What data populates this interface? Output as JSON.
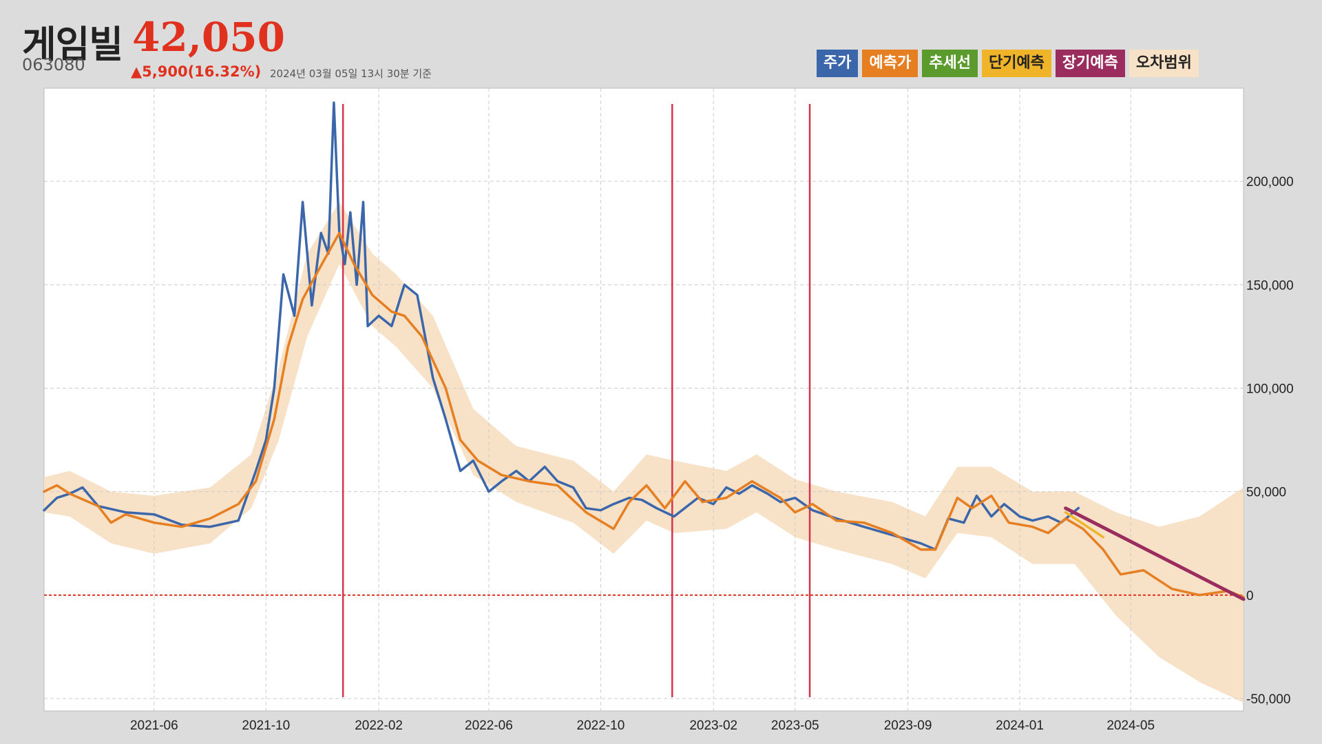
{
  "header": {
    "name": "게임빌",
    "price": "42,050",
    "code": "063080",
    "change": "▲5,900(16.32%)",
    "timestamp": "2024년 03월 05일 13시 30분 기준"
  },
  "legend": [
    {
      "label": "주가",
      "color": "#3b67aa",
      "text_color": "#ffffff"
    },
    {
      "label": "예측가",
      "color": "#e67e22",
      "text_color": "#ffffff"
    },
    {
      "label": "추세선",
      "color": "#5b9a2c",
      "text_color": "#ffffff"
    },
    {
      "label": "단기예측",
      "color": "#f0b429",
      "text_color": "#222222"
    },
    {
      "label": "장기예측",
      "color": "#9b2c5e",
      "text_color": "#ffffff"
    },
    {
      "label": "오차범위",
      "color": "#f7e1c7",
      "text_color": "#222222"
    }
  ],
  "chart_data": {
    "type": "line",
    "x_ticks": [
      "2021-06",
      "2021-10",
      "2022-02",
      "2022-06",
      "2022-10",
      "2023-02",
      "2023-05",
      "2023-09",
      "2024-01",
      "2024-05"
    ],
    "y_ticks": [
      "200,000",
      "150,000",
      "100,000",
      "50,000",
      "0",
      "-50,000"
    ],
    "y_tick_values": [
      200000,
      150000,
      100000,
      50000,
      0,
      -50000
    ],
    "xlim": [
      "2021-02-01",
      "2024-09-01"
    ],
    "ylim": [
      -56000,
      245000
    ],
    "grid": true,
    "zero_line_color": "#e0301e",
    "signal_dates": [
      "2021-12-24",
      "2022-12-18",
      "2023-05-17"
    ],
    "series": [
      {
        "name": "주가",
        "color": "#3b67aa",
        "points": [
          [
            "2021-02-01",
            41000
          ],
          [
            "2021-02-15",
            47000
          ],
          [
            "2021-03-01",
            49000
          ],
          [
            "2021-03-15",
            52000
          ],
          [
            "2021-04-01",
            43000
          ],
          [
            "2021-05-01",
            40000
          ],
          [
            "2021-06-01",
            39000
          ],
          [
            "2021-07-01",
            34000
          ],
          [
            "2021-08-01",
            33000
          ],
          [
            "2021-09-01",
            36000
          ],
          [
            "2021-09-20",
            60000
          ],
          [
            "2021-10-01",
            75000
          ],
          [
            "2021-10-10",
            100000
          ],
          [
            "2021-10-20",
            155000
          ],
          [
            "2021-11-01",
            135000
          ],
          [
            "2021-11-10",
            190000
          ],
          [
            "2021-11-20",
            140000
          ],
          [
            "2021-11-30",
            175000
          ],
          [
            "2021-12-08",
            165000
          ],
          [
            "2021-12-14",
            238000
          ],
          [
            "2021-12-20",
            175000
          ],
          [
            "2021-12-26",
            160000
          ],
          [
            "2022-01-01",
            185000
          ],
          [
            "2022-01-08",
            150000
          ],
          [
            "2022-01-15",
            190000
          ],
          [
            "2022-01-20",
            130000
          ],
          [
            "2022-02-01",
            135000
          ],
          [
            "2022-02-15",
            130000
          ],
          [
            "2022-03-01",
            150000
          ],
          [
            "2022-03-15",
            145000
          ],
          [
            "2022-04-01",
            105000
          ],
          [
            "2022-04-15",
            85000
          ],
          [
            "2022-05-01",
            60000
          ],
          [
            "2022-05-15",
            65000
          ],
          [
            "2022-06-01",
            50000
          ],
          [
            "2022-06-15",
            55000
          ],
          [
            "2022-07-01",
            60000
          ],
          [
            "2022-07-15",
            55000
          ],
          [
            "2022-08-01",
            62000
          ],
          [
            "2022-08-15",
            55000
          ],
          [
            "2022-09-01",
            52000
          ],
          [
            "2022-09-15",
            42000
          ],
          [
            "2022-10-01",
            41000
          ],
          [
            "2022-10-15",
            44000
          ],
          [
            "2022-11-01",
            47000
          ],
          [
            "2022-11-15",
            46000
          ],
          [
            "2022-12-01",
            42000
          ],
          [
            "2022-12-20",
            38000
          ],
          [
            "2023-01-15",
            47000
          ],
          [
            "2023-02-01",
            44000
          ],
          [
            "2023-02-15",
            52000
          ],
          [
            "2023-03-01",
            49000
          ],
          [
            "2023-03-15",
            53000
          ],
          [
            "2023-04-01",
            49000
          ],
          [
            "2023-04-15",
            45000
          ],
          [
            "2023-05-01",
            47000
          ],
          [
            "2023-05-20",
            41000
          ],
          [
            "2023-06-15",
            37000
          ],
          [
            "2023-07-15",
            33000
          ],
          [
            "2023-08-15",
            29000
          ],
          [
            "2023-09-15",
            25000
          ],
          [
            "2023-10-01",
            22000
          ],
          [
            "2023-10-15",
            37000
          ],
          [
            "2023-11-01",
            35000
          ],
          [
            "2023-11-15",
            48000
          ],
          [
            "2023-12-01",
            38000
          ],
          [
            "2023-12-15",
            44000
          ],
          [
            "2024-01-01",
            38000
          ],
          [
            "2024-01-15",
            36000
          ],
          [
            "2024-02-01",
            38000
          ],
          [
            "2024-02-15",
            35000
          ],
          [
            "2024-03-05",
            42050
          ]
        ]
      },
      {
        "name": "예측가",
        "color": "#e67e22",
        "points": [
          [
            "2021-02-01",
            50000
          ],
          [
            "2021-02-15",
            53000
          ],
          [
            "2021-03-01",
            49000
          ],
          [
            "2021-04-01",
            43000
          ],
          [
            "2021-04-15",
            35000
          ],
          [
            "2021-05-01",
            39000
          ],
          [
            "2021-06-01",
            35000
          ],
          [
            "2021-07-01",
            33000
          ],
          [
            "2021-08-01",
            37000
          ],
          [
            "2021-09-01",
            44000
          ],
          [
            "2021-09-20",
            55000
          ],
          [
            "2021-10-10",
            85000
          ],
          [
            "2021-10-25",
            120000
          ],
          [
            "2021-11-10",
            143000
          ],
          [
            "2021-12-01",
            160000
          ],
          [
            "2021-12-20",
            175000
          ],
          [
            "2022-01-05",
            160000
          ],
          [
            "2022-01-25",
            145000
          ],
          [
            "2022-02-15",
            137000
          ],
          [
            "2022-03-01",
            135000
          ],
          [
            "2022-03-20",
            125000
          ],
          [
            "2022-04-15",
            100000
          ],
          [
            "2022-05-01",
            75000
          ],
          [
            "2022-05-20",
            65000
          ],
          [
            "2022-06-15",
            58000
          ],
          [
            "2022-07-15",
            55000
          ],
          [
            "2022-08-15",
            53000
          ],
          [
            "2022-09-15",
            40000
          ],
          [
            "2022-10-15",
            32000
          ],
          [
            "2022-11-01",
            45000
          ],
          [
            "2022-11-20",
            53000
          ],
          [
            "2022-12-10",
            42000
          ],
          [
            "2023-01-01",
            55000
          ],
          [
            "2023-01-20",
            45000
          ],
          [
            "2023-02-15",
            47000
          ],
          [
            "2023-03-15",
            55000
          ],
          [
            "2023-04-15",
            47000
          ],
          [
            "2023-05-01",
            40000
          ],
          [
            "2023-05-20",
            44000
          ],
          [
            "2023-06-15",
            36000
          ],
          [
            "2023-07-15",
            35000
          ],
          [
            "2023-08-15",
            30000
          ],
          [
            "2023-09-15",
            22000
          ],
          [
            "2023-10-01",
            22000
          ],
          [
            "2023-10-25",
            47000
          ],
          [
            "2023-11-10",
            42000
          ],
          [
            "2023-12-01",
            48000
          ],
          [
            "2023-12-20",
            35000
          ],
          [
            "2024-01-15",
            33000
          ],
          [
            "2024-02-01",
            30000
          ],
          [
            "2024-02-20",
            37000
          ],
          [
            "2024-03-10",
            32000
          ],
          [
            "2024-04-01",
            22000
          ],
          [
            "2024-04-20",
            10000
          ],
          [
            "2024-05-15",
            12000
          ],
          [
            "2024-06-15",
            3000
          ],
          [
            "2024-07-15",
            0
          ],
          [
            "2024-08-15",
            2000
          ],
          [
            "2024-09-01",
            -1000
          ]
        ]
      },
      {
        "name": "단기예측",
        "color": "#f0b429",
        "points": [
          [
            "2024-02-20",
            40000
          ],
          [
            "2024-04-01",
            28000
          ]
        ]
      },
      {
        "name": "장기예측",
        "color": "#9b2c5e",
        "points": [
          [
            "2024-02-20",
            42000
          ],
          [
            "2024-09-01",
            -2000
          ]
        ]
      }
    ],
    "error_band": {
      "name": "오차범위",
      "color": "#f7e1c7",
      "points": [
        [
          "2021-02-01",
          57000,
          40000
        ],
        [
          "2021-03-01",
          60000,
          38000
        ],
        [
          "2021-04-15",
          50000,
          25000
        ],
        [
          "2021-06-01",
          48000,
          20000
        ],
        [
          "2021-08-01",
          52000,
          25000
        ],
        [
          "2021-09-15",
          68000,
          42000
        ],
        [
          "2021-10-15",
          110000,
          75000
        ],
        [
          "2021-11-15",
          165000,
          125000
        ],
        [
          "2021-12-20",
          190000,
          160000
        ],
        [
          "2022-01-25",
          165000,
          130000
        ],
        [
          "2022-02-20",
          155000,
          120000
        ],
        [
          "2022-04-01",
          135000,
          100000
        ],
        [
          "2022-05-15",
          90000,
          58000
        ],
        [
          "2022-07-01",
          72000,
          45000
        ],
        [
          "2022-09-01",
          65000,
          35000
        ],
        [
          "2022-10-15",
          50000,
          20000
        ],
        [
          "2022-11-20",
          68000,
          36000
        ],
        [
          "2022-12-20",
          65000,
          30000
        ],
        [
          "2023-02-15",
          60000,
          32000
        ],
        [
          "2023-03-20",
          68000,
          40000
        ],
        [
          "2023-05-01",
          56000,
          28000
        ],
        [
          "2023-06-15",
          50000,
          22000
        ],
        [
          "2023-08-15",
          45000,
          15000
        ],
        [
          "2023-09-20",
          38000,
          8000
        ],
        [
          "2023-10-25",
          62000,
          30000
        ],
        [
          "2023-12-01",
          62000,
          28000
        ],
        [
          "2024-01-15",
          50000,
          15000
        ],
        [
          "2024-03-01",
          50000,
          15000
        ],
        [
          "2024-04-15",
          40000,
          -10000
        ],
        [
          "2024-06-01",
          33000,
          -30000
        ],
        [
          "2024-07-15",
          38000,
          -42000
        ],
        [
          "2024-09-01",
          52000,
          -52000
        ]
      ]
    }
  }
}
